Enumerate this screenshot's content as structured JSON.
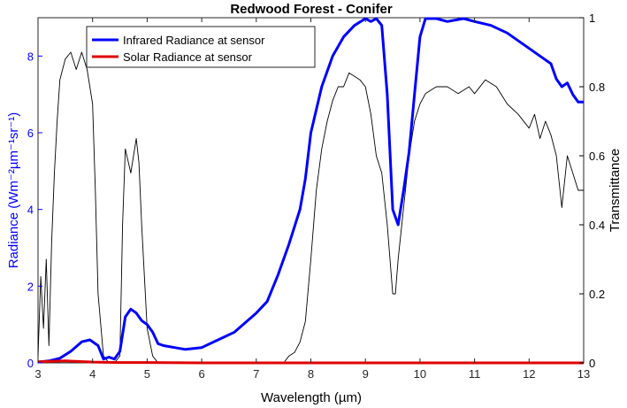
{
  "chart_data": {
    "type": "line",
    "title": "Redwood Forest - Conifer",
    "xlabel": "Wavelength (µm)",
    "ylabel_left": "Radiance (Wm⁻²µm⁻¹sr⁻¹)",
    "ylabel_right": "Transmittance",
    "xlim": [
      3,
      13
    ],
    "ylim_left": [
      0,
      9
    ],
    "ylim_right": [
      0,
      1
    ],
    "x_ticks": [
      "3",
      "4",
      "5",
      "6",
      "7",
      "8",
      "9",
      "10",
      "11",
      "12",
      "13"
    ],
    "y_left_ticks": [
      "0",
      "2",
      "4",
      "6",
      "8"
    ],
    "y_right_ticks": [
      "0",
      "0.2",
      "0.4",
      "0.6",
      "0.8",
      "1"
    ],
    "grid": false,
    "legend_position": "top-left",
    "colors": {
      "infrared": "#0000ff",
      "solar": "#e00000",
      "transmittance": "#000000",
      "left_axis": "#0000ff",
      "right_axis": "#000000"
    },
    "series": [
      {
        "name": "Infrared Radiance at sensor",
        "axis": "left",
        "x": [
          3.0,
          3.2,
          3.4,
          3.6,
          3.8,
          3.95,
          4.1,
          4.2,
          4.3,
          4.4,
          4.5,
          4.6,
          4.7,
          4.8,
          4.9,
          5.0,
          5.1,
          5.2,
          5.3,
          5.5,
          5.7,
          6.0,
          6.3,
          6.6,
          7.0,
          7.2,
          7.4,
          7.6,
          7.8,
          7.9,
          8.0,
          8.2,
          8.4,
          8.6,
          8.8,
          9.0,
          9.1,
          9.2,
          9.3,
          9.4,
          9.5,
          9.6,
          9.7,
          9.8,
          9.9,
          10.0,
          10.1,
          10.3,
          10.5,
          10.8,
          11.0,
          11.3,
          11.6,
          11.9,
          12.2,
          12.4,
          12.5,
          12.6,
          12.7,
          12.8,
          12.9,
          13.0
        ],
        "y": [
          0.02,
          0.05,
          0.12,
          0.3,
          0.55,
          0.6,
          0.45,
          0.1,
          0.15,
          0.1,
          0.3,
          1.2,
          1.4,
          1.3,
          1.1,
          1.0,
          0.8,
          0.5,
          0.45,
          0.4,
          0.35,
          0.4,
          0.6,
          0.8,
          1.3,
          1.6,
          2.3,
          3.1,
          4.0,
          4.8,
          6.0,
          7.2,
          8.0,
          8.5,
          8.8,
          9.0,
          8.9,
          9.0,
          8.8,
          7.0,
          4.0,
          3.6,
          4.5,
          5.5,
          7.0,
          8.5,
          9.0,
          9.0,
          8.9,
          9.0,
          8.9,
          8.8,
          8.6,
          8.3,
          8.0,
          7.8,
          7.4,
          7.2,
          7.3,
          7.0,
          6.8,
          6.8
        ]
      },
      {
        "name": "Solar Radiance at sensor",
        "axis": "left",
        "x": [
          3.0,
          3.5,
          4.0,
          4.5,
          5.0,
          6.0,
          7.0,
          8.0,
          9.0,
          10.0,
          11.0,
          12.0,
          13.0
        ],
        "y": [
          0.03,
          0.05,
          0.02,
          0.01,
          0.01,
          0.0,
          0.0,
          0.0,
          0.0,
          0.0,
          0.0,
          0.0,
          0.0
        ]
      },
      {
        "name": "Transmittance",
        "axis": "right",
        "x": [
          3.0,
          3.05,
          3.1,
          3.15,
          3.2,
          3.25,
          3.3,
          3.35,
          3.4,
          3.5,
          3.6,
          3.7,
          3.8,
          3.9,
          4.0,
          4.05,
          4.1,
          4.2,
          4.3,
          4.4,
          4.5,
          4.55,
          4.6,
          4.7,
          4.8,
          4.85,
          4.9,
          5.0,
          5.1,
          5.2,
          5.3,
          5.5,
          6.0,
          6.5,
          7.0,
          7.5,
          7.6,
          7.7,
          7.8,
          7.9,
          8.0,
          8.1,
          8.2,
          8.3,
          8.4,
          8.5,
          8.6,
          8.7,
          8.8,
          8.9,
          9.0,
          9.1,
          9.2,
          9.3,
          9.4,
          9.5,
          9.55,
          9.6,
          9.7,
          9.8,
          9.9,
          10.0,
          10.1,
          10.3,
          10.5,
          10.7,
          10.9,
          11.0,
          11.2,
          11.4,
          11.6,
          11.8,
          12.0,
          12.1,
          12.2,
          12.3,
          12.4,
          12.5,
          12.6,
          12.7,
          12.8,
          12.9,
          13.0
        ],
        "y": [
          0.02,
          0.25,
          0.1,
          0.3,
          0.05,
          0.35,
          0.55,
          0.7,
          0.82,
          0.88,
          0.9,
          0.85,
          0.9,
          0.85,
          0.75,
          0.5,
          0.2,
          0.02,
          0.0,
          0.0,
          0.02,
          0.4,
          0.62,
          0.55,
          0.65,
          0.58,
          0.4,
          0.1,
          0.02,
          0.0,
          0.0,
          0.0,
          0.0,
          0.0,
          0.0,
          0.0,
          0.02,
          0.03,
          0.06,
          0.12,
          0.3,
          0.5,
          0.62,
          0.7,
          0.76,
          0.8,
          0.8,
          0.84,
          0.83,
          0.82,
          0.8,
          0.72,
          0.6,
          0.55,
          0.4,
          0.2,
          0.2,
          0.3,
          0.45,
          0.6,
          0.7,
          0.75,
          0.78,
          0.8,
          0.8,
          0.78,
          0.8,
          0.78,
          0.82,
          0.8,
          0.75,
          0.72,
          0.68,
          0.72,
          0.65,
          0.7,
          0.66,
          0.6,
          0.45,
          0.6,
          0.55,
          0.5,
          0.5
        ]
      }
    ]
  }
}
